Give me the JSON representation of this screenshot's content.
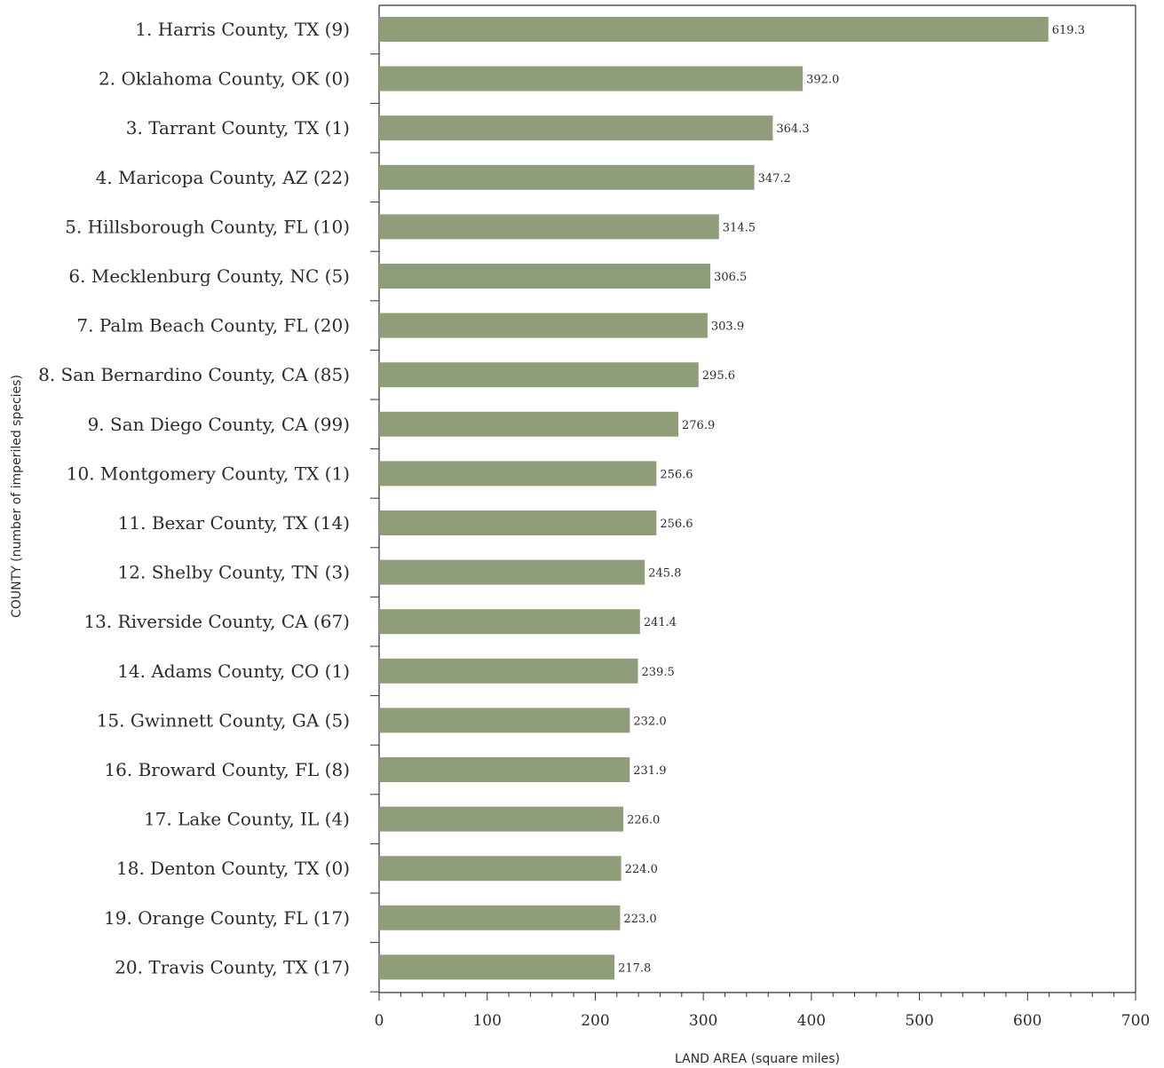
{
  "chart_data": {
    "type": "bar",
    "orientation": "horizontal",
    "categories": [
      "1. Harris County, TX (9)",
      "2. Oklahoma County, OK (0)",
      "3. Tarrant County, TX (1)",
      "4. Maricopa County, AZ (22)",
      "5. Hillsborough County, FL (10)",
      "6. Mecklenburg County, NC (5)",
      "7. Palm Beach County, FL (20)",
      "8. San Bernardino County, CA (85)",
      "9. San Diego County, CA (99)",
      "10. Montgomery County, TX (1)",
      "11. Bexar County, TX (14)",
      "12. Shelby County, TN (3)",
      "13. Riverside County, CA (67)",
      "14. Adams County, CO (1)",
      "15. Gwinnett County, GA (5)",
      "16. Broward County, FL (8)",
      "17. Lake County, IL (4)",
      "18. Denton County, TX (0)",
      "19. Orange County, FL (17)",
      "20. Travis County, TX (17)"
    ],
    "values": [
      619.3,
      392.0,
      364.3,
      347.2,
      314.5,
      306.5,
      303.9,
      295.6,
      276.9,
      256.6,
      256.6,
      245.8,
      241.4,
      239.5,
      232.0,
      231.9,
      226.0,
      224.0,
      223.0,
      217.8
    ],
    "value_labels": [
      "619.3",
      "392.0",
      "364.3",
      "347.2",
      "314.5",
      "306.5",
      "303.9",
      "295.6",
      "276.9",
      "256.6",
      "256.6",
      "245.8",
      "241.4",
      "239.5",
      "232.0",
      "231.9",
      "226.0",
      "224.0",
      "223.0",
      "217.8"
    ],
    "xlabel": "LAND AREA (square miles)",
    "ylabel": "COUNTY (number of imperiled species)",
    "xlim": [
      0,
      700
    ],
    "xticks": [
      0,
      100,
      200,
      300,
      400,
      500,
      600,
      700
    ],
    "grid": false,
    "legend": "none",
    "bar_color": "#8f9e78"
  }
}
